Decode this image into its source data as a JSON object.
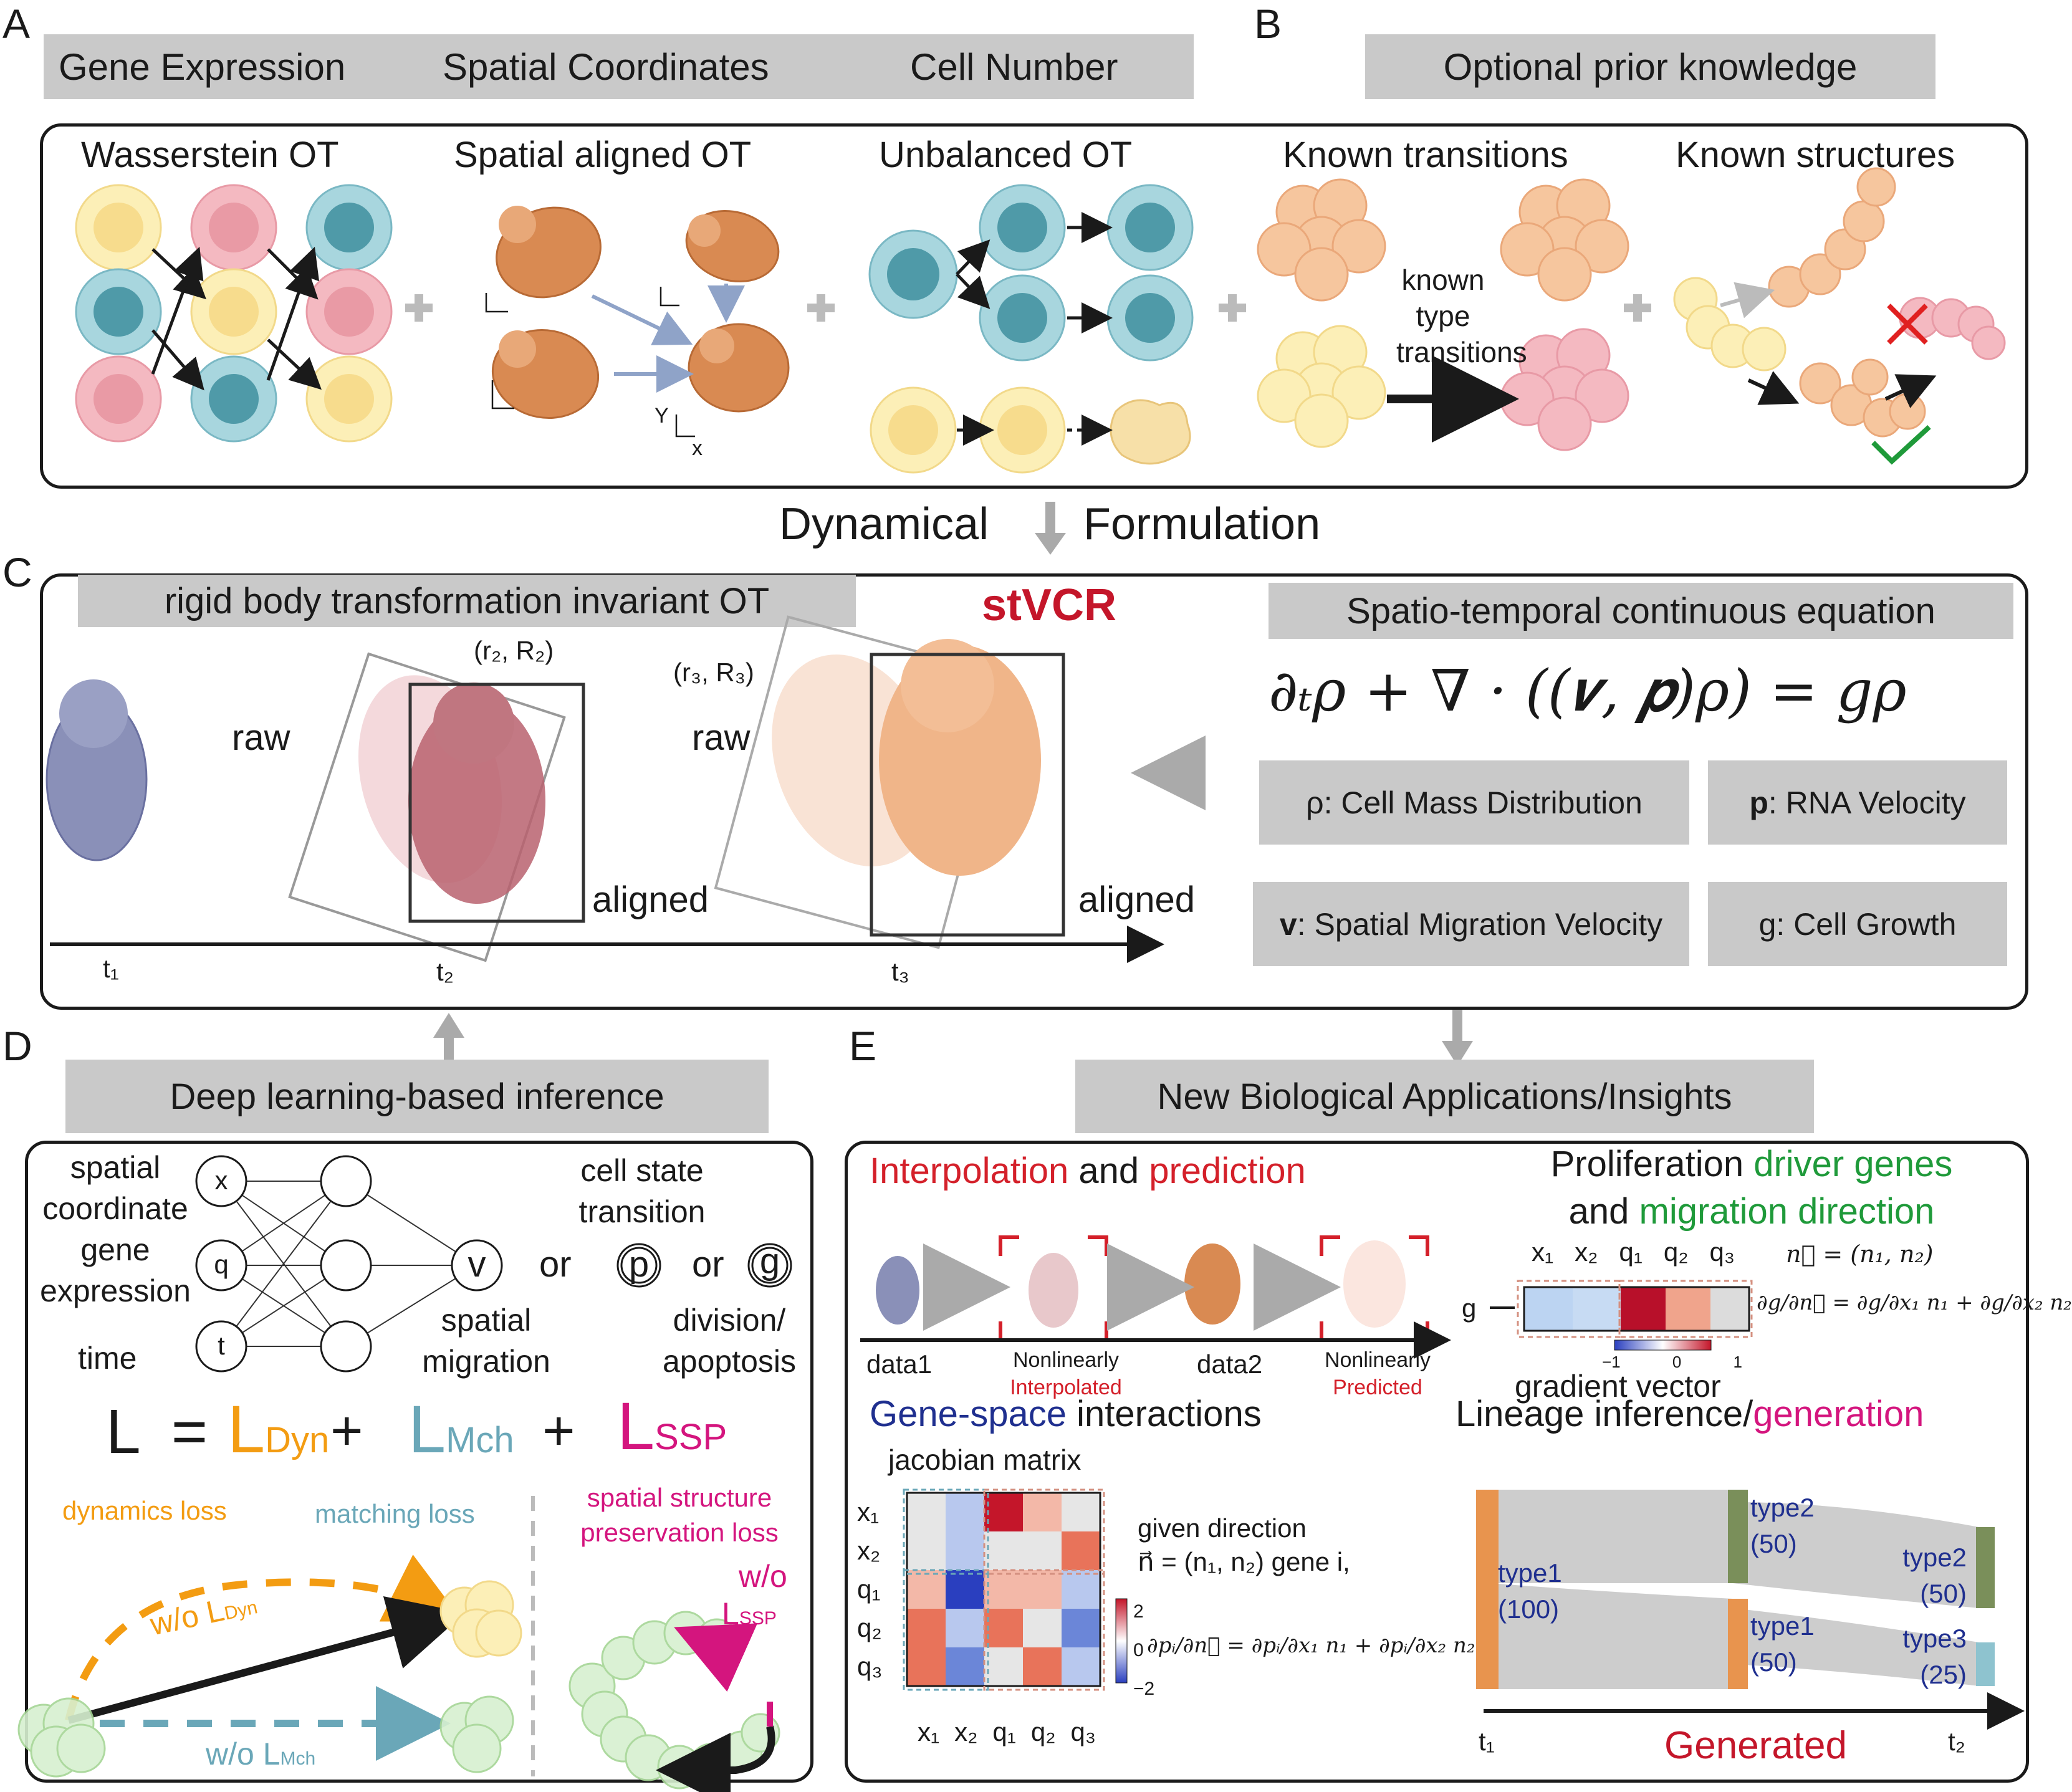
{
  "panels": {
    "a": "A",
    "b": "B",
    "c": "C",
    "d": "D",
    "e": "E"
  },
  "panel_a": {
    "headers": [
      "Gene Expression",
      "Spatial Coordinates",
      "Cell Number"
    ],
    "titles": [
      "Wasserstein OT",
      "Spatial aligned OT",
      "Unbalanced OT"
    ],
    "axis_y": "Y",
    "axis_x": "x"
  },
  "panel_b": {
    "header": "Optional prior knowledge",
    "titles": [
      "Known transitions",
      "Known structures"
    ],
    "arrow_label_lines": [
      "known",
      "type",
      "transitions"
    ]
  },
  "middle": {
    "left": "Dynamical",
    "right": "Formulation"
  },
  "panel_c": {
    "header": "rigid body transformation invariant OT",
    "tool_name": "stVCR",
    "eq_header": "Spatio-temporal continuous equation",
    "equation": "∂ₜρ + ∇ · ((𝒗, 𝒑)ρ) = gρ",
    "raw1": "raw",
    "raw2": "raw",
    "aligned1": "aligned",
    "aligned2": "aligned",
    "r2": "(r₂, R₂)",
    "r3": "(r₃, R₃)",
    "times": [
      "t₁",
      "t₂",
      "t₃"
    ],
    "defs": {
      "rho": "ρ: Cell Mass Distribution",
      "p_sym": "p",
      "p_rest": ":  RNA Velocity",
      "v_sym": "v",
      "v_rest": ": Spatial Migration Velocity",
      "g": "g: Cell Growth"
    }
  },
  "panel_d": {
    "header": "Deep learning-based inference",
    "inputs": [
      "spatial",
      "coordinate",
      "gene",
      "expression",
      "time"
    ],
    "nodes": [
      "x",
      "q",
      "t"
    ],
    "out_v": "v",
    "out_p": "p",
    "out_g": "g",
    "or": "or",
    "cell_state": [
      "cell state",
      "transition"
    ],
    "spatial_migration": [
      "spatial",
      "migration"
    ],
    "division": [
      "division/",
      "apoptosis"
    ],
    "loss": {
      "L": "L",
      "eq": "=",
      "plus": "+",
      "base": "L",
      "dyn": "Dyn",
      "mch": "Mch",
      "ssp": "SSP"
    },
    "dyn_loss": "dynamics loss",
    "mch_loss": "matching loss",
    "ssp_loss": [
      "spatial structure",
      "preservation loss"
    ],
    "wo": "w/o",
    "wo_dyn": "w/o L",
    "wo_mch": "w/o L"
  },
  "panel_e": {
    "header": "New Biological Applications/Insights",
    "interp_title": {
      "a": "Interpolation",
      "b": " and ",
      "c": "prediction"
    },
    "data1": "data1",
    "data2": "data2",
    "nonlin1": [
      "Nonlinearly",
      "Interpolated"
    ],
    "nonlin2": [
      "Nonlinearly",
      "Predicted"
    ],
    "prolif_title": {
      "a": "Proliferation ",
      "b": "driver genes",
      "c": "and ",
      "d": "migration direction"
    },
    "heat_cols": [
      "x₁",
      "x₂",
      "q₁",
      "q₂",
      "q₃"
    ],
    "g_label": "g",
    "scale_ticks": [
      "−1",
      "0",
      "1"
    ],
    "gradient_vector": "gradient vector",
    "n_vec": "n⃗ = (n₁, n₂)",
    "dg_eq": "∂g/∂n⃗ = ∂g/∂x₁ n₁ + ∂g/∂x₂ n₂",
    "gs_title": {
      "a": "Gene-space",
      "b": " interactions"
    },
    "jacobian": "jacobian matrix",
    "jac_rows": [
      "x₁",
      "x₂",
      "q₁",
      "q₂",
      "q₃"
    ],
    "jac_cols": [
      "x₁",
      "x₂",
      "q₁",
      "q₂",
      "q₃"
    ],
    "jac_ticks": [
      "2",
      "0",
      "−2"
    ],
    "given": [
      "given direction",
      "n⃗ = (n₁, n₂) gene i,"
    ],
    "dp_eq": "∂pᵢ/∂n⃗ = ∂pᵢ/∂x₁ n₁ + ∂pᵢ/∂x₂ n₂",
    "lineage_title": {
      "a": "Lineage inference/",
      "b": "generation"
    },
    "lineage_nodes": {
      "t1": [
        "type1",
        "(100)"
      ],
      "mid_top": [
        "type2",
        "(50)"
      ],
      "mid_bot": [
        "type1",
        "(50)"
      ],
      "end_top": [
        "type2",
        "(50)"
      ],
      "end_bot": [
        "type3",
        "(25)"
      ]
    },
    "generated": "Generated",
    "lt1": "t₁",
    "lt2": "t₂"
  },
  "colors": {
    "yellow_cell": "#fcefb7",
    "yellow_nuc": "#f7dc8d",
    "pink_cell": "#f4b9c1",
    "pink_nuc": "#e99aa5",
    "teal_cell": "#a8d6de",
    "teal_nuc": "#4f9aa8",
    "embryo": "#d98a52",
    "embryo_blue": "#8a90b8",
    "gray_bar": "#c9c9c9",
    "arrow_blue": "#8fa3c8"
  }
}
